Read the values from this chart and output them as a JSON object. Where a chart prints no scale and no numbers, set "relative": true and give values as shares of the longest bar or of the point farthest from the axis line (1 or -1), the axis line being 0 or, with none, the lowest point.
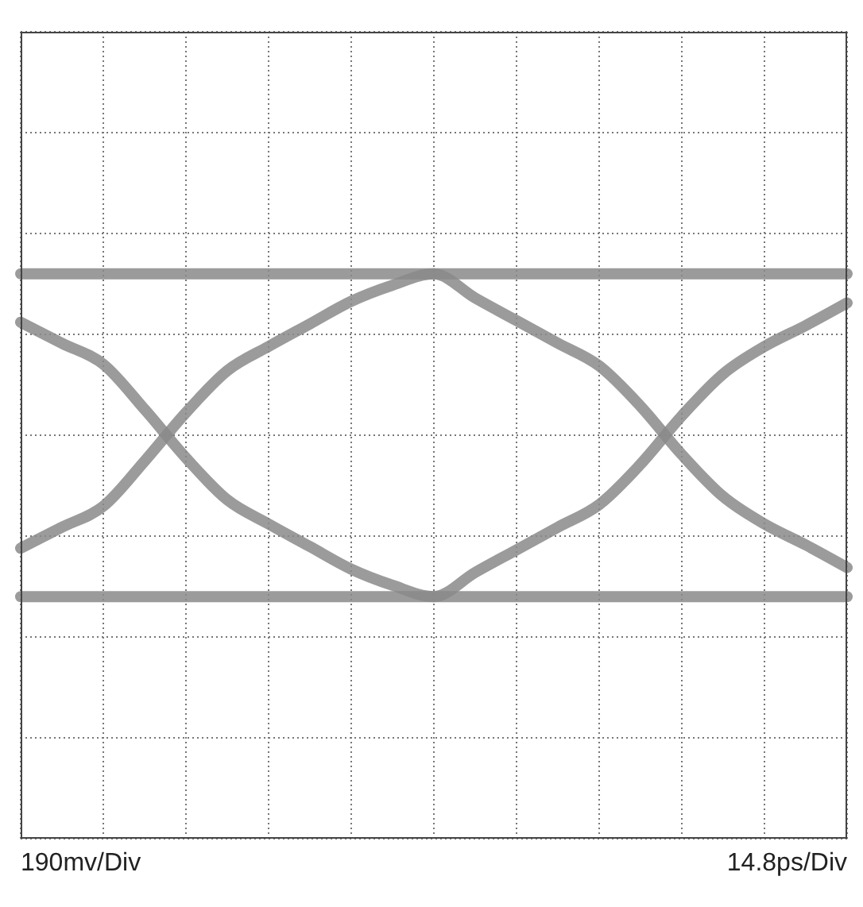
{
  "chart_data": {
    "type": "line",
    "relative": true,
    "grid": true,
    "marker": "none",
    "line_style": "solid",
    "categories": [
      null,
      null,
      null,
      null,
      null,
      null,
      null,
      null,
      null,
      null,
      null,
      null,
      null,
      null,
      null,
      null,
      null,
      null,
      null,
      null,
      null
    ],
    "series": [
      {
        "color": "#8a8a8a",
        "values": [
          -0.7,
          -0.57,
          -0.44,
          -0.16,
          0.14,
          0.4,
          0.55,
          0.69,
          0.83,
          0.93,
          1,
          0.85,
          0.71,
          0.57,
          0.43,
          0.18,
          -0.12,
          -0.38,
          -0.55,
          -0.68,
          -0.82
        ]
      },
      {
        "color": "#8a8a8a",
        "values": [
          0.7,
          0.57,
          0.44,
          0.16,
          -0.14,
          -0.4,
          -0.55,
          -0.69,
          -0.83,
          -0.93,
          -1,
          -0.85,
          -0.71,
          -0.57,
          -0.43,
          -0.18,
          0.12,
          0.38,
          0.55,
          0.68,
          0.82
        ]
      },
      {
        "color": "#8a8a8a",
        "values": [
          1,
          1,
          1,
          1,
          1,
          1,
          1,
          1,
          1,
          1,
          1,
          1,
          1,
          1,
          1,
          1,
          1,
          1,
          1,
          1,
          1
        ]
      },
      {
        "color": "#8a8a8a",
        "values": [
          -1,
          -1,
          -1,
          -1,
          -1,
          -1,
          -1,
          -1,
          -1,
          -1,
          -1,
          -1,
          -1,
          -1,
          -1,
          -1,
          -1,
          -1,
          -1,
          -1,
          -1
        ]
      }
    ],
    "annotations": [
      "190mv/Div",
      "14.8ps/Div"
    ]
  }
}
